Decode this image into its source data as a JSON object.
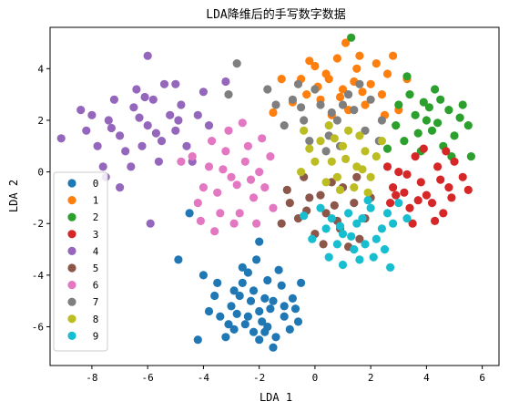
{
  "chart_data": {
    "type": "scatter",
    "title": "LDA降维后的手写数字数据",
    "xlabel": "LDA 1",
    "ylabel": "LDA 2",
    "xlim": [
      -9.5,
      6.6
    ],
    "ylim": [
      -7.5,
      5.6
    ],
    "xticks": [
      -8,
      -6,
      -4,
      -2,
      0,
      2,
      4,
      6
    ],
    "yticks": [
      -6,
      -4,
      -2,
      0,
      2,
      4
    ],
    "grid": false,
    "legend_position": "lower-left",
    "series": [
      {
        "name": "0",
        "color": "#1f77b4",
        "points": [
          [
            -2.0,
            -5.4
          ],
          [
            -2.5,
            -5.9
          ],
          [
            -1.5,
            -5.0
          ],
          [
            -2.2,
            -4.6
          ],
          [
            -1.8,
            -6.2
          ],
          [
            -3.0,
            -5.2
          ],
          [
            -1.1,
            -5.6
          ],
          [
            -2.7,
            -4.8
          ],
          [
            -1.4,
            -6.4
          ],
          [
            -2.3,
            -5.0
          ],
          [
            -1.7,
            -4.2
          ],
          [
            -3.4,
            -5.6
          ],
          [
            -0.8,
            -4.9
          ],
          [
            -2.0,
            -6.5
          ],
          [
            -2.9,
            -6.1
          ],
          [
            -1.2,
            -4.4
          ],
          [
            -3.6,
            -4.8
          ],
          [
            -0.6,
            -5.8
          ],
          [
            -2.4,
            -3.9
          ],
          [
            -1.6,
            -5.3
          ],
          [
            -2.8,
            -5.5
          ],
          [
            -1.9,
            -5.8
          ],
          [
            -3.2,
            -6.4
          ],
          [
            -1.3,
            -3.8
          ],
          [
            -2.6,
            -4.3
          ],
          [
            -0.9,
            -6.1
          ],
          [
            -3.8,
            -5.4
          ],
          [
            -2.1,
            -3.4
          ],
          [
            -1.5,
            -6.8
          ],
          [
            -4.0,
            -4.0
          ],
          [
            -2.0,
            -2.7
          ],
          [
            -4.2,
            -6.5
          ],
          [
            -0.5,
            -4.3
          ],
          [
            -4.9,
            -3.4
          ],
          [
            -4.5,
            -1.6
          ],
          [
            -1.8,
            -4.9
          ],
          [
            -2.4,
            -5.6
          ],
          [
            -1.1,
            -5.2
          ],
          [
            -2.9,
            -4.6
          ],
          [
            -3.5,
            -4.3
          ],
          [
            -1.7,
            -6.0
          ],
          [
            -2.2,
            -6.2
          ],
          [
            -0.7,
            -5.3
          ],
          [
            -3.1,
            -5.9
          ],
          [
            -2.6,
            -3.7
          ]
        ]
      },
      {
        "name": "1",
        "color": "#ff7f0e",
        "points": [
          [
            0.5,
            3.6
          ],
          [
            1.0,
            3.2
          ],
          [
            1.5,
            4.0
          ],
          [
            0.2,
            2.8
          ],
          [
            2.0,
            3.4
          ],
          [
            0.8,
            4.4
          ],
          [
            1.8,
            2.6
          ],
          [
            -0.3,
            3.0
          ],
          [
            1.2,
            2.4
          ],
          [
            2.4,
            3.0
          ],
          [
            0.0,
            4.1
          ],
          [
            1.6,
            4.5
          ],
          [
            2.6,
            3.8
          ],
          [
            -0.8,
            2.7
          ],
          [
            0.6,
            2.2
          ],
          [
            1.4,
            3.5
          ],
          [
            3.0,
            2.4
          ],
          [
            -0.5,
            3.6
          ],
          [
            2.2,
            4.2
          ],
          [
            0.4,
            3.8
          ],
          [
            1.1,
            5.0
          ],
          [
            -1.2,
            3.6
          ],
          [
            2.8,
            4.5
          ],
          [
            -1.5,
            2.3
          ],
          [
            3.3,
            3.6
          ],
          [
            0.9,
            2.9
          ],
          [
            1.7,
            3.1
          ],
          [
            0.1,
            3.3
          ],
          [
            2.5,
            2.2
          ],
          [
            -0.2,
            4.3
          ]
        ]
      },
      {
        "name": "2",
        "color": "#2ca02c",
        "points": [
          [
            3.6,
            2.2
          ],
          [
            4.2,
            1.6
          ],
          [
            4.8,
            2.4
          ],
          [
            3.2,
            1.2
          ],
          [
            4.5,
            2.8
          ],
          [
            5.0,
            1.4
          ],
          [
            3.8,
            0.8
          ],
          [
            4.0,
            2.0
          ],
          [
            5.3,
            2.6
          ],
          [
            3.4,
            3.0
          ],
          [
            4.6,
            1.0
          ],
          [
            4.3,
            3.2
          ],
          [
            2.9,
            1.8
          ],
          [
            5.5,
            1.8
          ],
          [
            3.7,
            1.5
          ],
          [
            4.9,
            0.6
          ],
          [
            3.0,
            2.6
          ],
          [
            4.1,
            2.5
          ],
          [
            5.6,
            0.6
          ],
          [
            2.6,
            0.9
          ],
          [
            4.4,
            1.9
          ],
          [
            3.3,
            3.7
          ],
          [
            5.2,
            2.1
          ],
          [
            1.3,
            5.2
          ],
          [
            3.9,
            2.7
          ]
        ]
      },
      {
        "name": "3",
        "color": "#d62728",
        "points": [
          [
            3.8,
            -0.4
          ],
          [
            4.4,
            0.2
          ],
          [
            3.2,
            -0.8
          ],
          [
            4.8,
            -0.6
          ],
          [
            3.6,
            0.6
          ],
          [
            4.2,
            -1.2
          ],
          [
            3.0,
            0.0
          ],
          [
            5.0,
            0.4
          ],
          [
            4.6,
            -1.6
          ],
          [
            3.4,
            -1.4
          ],
          [
            2.8,
            -0.6
          ],
          [
            5.3,
            -0.2
          ],
          [
            4.0,
            -0.9
          ],
          [
            3.5,
            -2.0
          ],
          [
            4.9,
            -1.0
          ],
          [
            2.6,
            0.2
          ],
          [
            3.9,
            0.9
          ],
          [
            4.5,
            -0.3
          ],
          [
            3.3,
            -0.1
          ],
          [
            5.5,
            -0.7
          ],
          [
            2.7,
            -1.2
          ],
          [
            4.7,
            0.8
          ],
          [
            3.7,
            -1.1
          ],
          [
            4.3,
            -1.9
          ],
          [
            2.9,
            -0.9
          ]
        ]
      },
      {
        "name": "4",
        "color": "#9467bd",
        "points": [
          [
            -6.0,
            1.8
          ],
          [
            -6.5,
            2.5
          ],
          [
            -5.5,
            1.2
          ],
          [
            -7.0,
            1.4
          ],
          [
            -5.8,
            2.8
          ],
          [
            -6.8,
            0.8
          ],
          [
            -5.2,
            2.2
          ],
          [
            -7.4,
            2.0
          ],
          [
            -6.2,
            1.0
          ],
          [
            -5.0,
            1.6
          ],
          [
            -7.2,
            2.8
          ],
          [
            -6.4,
            3.2
          ],
          [
            -5.6,
            0.4
          ],
          [
            -7.8,
            1.0
          ],
          [
            -4.8,
            2.6
          ],
          [
            -6.6,
            0.2
          ],
          [
            -5.4,
            3.4
          ],
          [
            -8.0,
            2.2
          ],
          [
            -4.6,
            1.0
          ],
          [
            -7.6,
            0.2
          ],
          [
            -5.0,
            3.4
          ],
          [
            -6.0,
            4.5
          ],
          [
            -4.2,
            2.2
          ],
          [
            -8.2,
            1.6
          ],
          [
            -7.0,
            -0.6
          ],
          [
            -4.4,
            0.4
          ],
          [
            -3.8,
            1.8
          ],
          [
            -5.9,
            -2.0
          ],
          [
            -9.1,
            1.3
          ],
          [
            -3.2,
            3.5
          ],
          [
            -6.3,
            2.1
          ],
          [
            -5.7,
            1.5
          ],
          [
            -7.3,
            1.7
          ],
          [
            -4.9,
            2.0
          ],
          [
            -6.1,
            2.9
          ],
          [
            -8.4,
            2.4
          ],
          [
            -4.0,
            3.1
          ],
          [
            -7.5,
            -0.2
          ]
        ]
      },
      {
        "name": "5",
        "color": "#8c564b",
        "points": [
          [
            0.4,
            -1.6
          ],
          [
            0.9,
            -2.2
          ],
          [
            -0.2,
            -1.0
          ],
          [
            1.4,
            -1.2
          ],
          [
            0.0,
            -2.4
          ],
          [
            1.0,
            -0.6
          ],
          [
            -0.6,
            -1.8
          ],
          [
            1.6,
            -2.6
          ],
          [
            0.6,
            -0.4
          ],
          [
            -0.9,
            -1.2
          ],
          [
            1.8,
            -1.8
          ],
          [
            0.2,
            -0.9
          ],
          [
            -1.2,
            -2.0
          ],
          [
            1.2,
            -2.9
          ],
          [
            0.7,
            -1.3
          ],
          [
            -0.4,
            -0.2
          ],
          [
            2.0,
            -1.0
          ],
          [
            -1.0,
            -0.7
          ],
          [
            0.3,
            -2.8
          ],
          [
            1.5,
            -0.2
          ],
          [
            -0.3,
            -1.5
          ],
          [
            0.8,
            -1.9
          ]
        ]
      },
      {
        "name": "6",
        "color": "#e377c2",
        "points": [
          [
            -3.0,
            -0.2
          ],
          [
            -2.5,
            0.4
          ],
          [
            -3.5,
            -0.8
          ],
          [
            -2.2,
            -1.0
          ],
          [
            -3.2,
            0.8
          ],
          [
            -2.7,
            -1.6
          ],
          [
            -3.8,
            0.2
          ],
          [
            -2.0,
            0.0
          ],
          [
            -3.4,
            -1.6
          ],
          [
            -2.4,
            1.0
          ],
          [
            -4.0,
            -0.6
          ],
          [
            -1.8,
            -0.6
          ],
          [
            -2.9,
            -2.0
          ],
          [
            -3.7,
            1.2
          ],
          [
            -1.6,
            0.6
          ],
          [
            -4.2,
            -1.2
          ],
          [
            -2.1,
            -2.0
          ],
          [
            -3.1,
            1.6
          ],
          [
            -1.5,
            -1.4
          ],
          [
            -4.4,
            0.6
          ],
          [
            -2.6,
            1.9
          ],
          [
            -3.6,
            -2.3
          ],
          [
            -4.8,
            0.4
          ],
          [
            -2.8,
            -0.5
          ],
          [
            -3.3,
            0.1
          ],
          [
            -2.3,
            -0.3
          ],
          [
            -1.9,
            1.3
          ],
          [
            -4.1,
            -1.9
          ]
        ]
      },
      {
        "name": "7",
        "color": "#7f7f7f",
        "points": [
          [
            0.2,
            2.6
          ],
          [
            0.8,
            2.0
          ],
          [
            -0.4,
            2.0
          ],
          [
            1.4,
            2.4
          ],
          [
            0.5,
            1.4
          ],
          [
            -0.8,
            2.8
          ],
          [
            1.8,
            1.6
          ],
          [
            0.0,
            3.2
          ],
          [
            1.2,
            3.0
          ],
          [
            -0.2,
            1.2
          ],
          [
            2.0,
            2.8
          ],
          [
            0.9,
            1.0
          ],
          [
            -1.1,
            1.8
          ],
          [
            1.6,
            3.4
          ],
          [
            -0.6,
            3.4
          ],
          [
            2.4,
            2.0
          ],
          [
            0.4,
            0.8
          ],
          [
            -1.4,
            2.6
          ],
          [
            1.0,
            2.6
          ],
          [
            -0.5,
            2.5
          ],
          [
            2.3,
            1.2
          ],
          [
            -1.7,
            3.2
          ],
          [
            -2.8,
            4.2
          ],
          [
            -3.1,
            3.0
          ],
          [
            0.6,
            2.3
          ]
        ]
      },
      {
        "name": "8",
        "color": "#bcbd22",
        "points": [
          [
            1.0,
            1.0
          ],
          [
            0.6,
            0.4
          ],
          [
            1.5,
            0.2
          ],
          [
            0.2,
            1.2
          ],
          [
            1.8,
            0.8
          ],
          [
            0.8,
            -0.2
          ],
          [
            1.2,
            1.6
          ],
          [
            0.0,
            0.4
          ],
          [
            2.0,
            -0.2
          ],
          [
            0.4,
            -0.4
          ],
          [
            1.6,
            1.4
          ],
          [
            -0.2,
            0.9
          ],
          [
            2.2,
            0.6
          ],
          [
            0.9,
            -0.7
          ],
          [
            1.4,
            -0.6
          ],
          [
            -0.4,
            1.6
          ],
          [
            2.4,
            1.2
          ],
          [
            0.5,
            1.8
          ],
          [
            1.9,
            -0.8
          ],
          [
            -0.5,
            0.0
          ],
          [
            1.1,
            0.5
          ],
          [
            0.7,
            1.3
          ],
          [
            1.7,
            0.1
          ]
        ]
      },
      {
        "name": "9",
        "color": "#17becf",
        "points": [
          [
            1.5,
            -2.0
          ],
          [
            2.0,
            -1.4
          ],
          [
            1.0,
            -2.4
          ],
          [
            2.4,
            -2.2
          ],
          [
            1.2,
            -1.6
          ],
          [
            1.8,
            -2.8
          ],
          [
            0.6,
            -1.8
          ],
          [
            2.6,
            -1.6
          ],
          [
            1.4,
            -3.0
          ],
          [
            0.8,
            -2.8
          ],
          [
            2.2,
            -2.6
          ],
          [
            0.4,
            -2.2
          ],
          [
            2.8,
            -2.0
          ],
          [
            1.6,
            -3.4
          ],
          [
            0.2,
            -1.4
          ],
          [
            3.0,
            -1.2
          ],
          [
            1.0,
            -3.6
          ],
          [
            2.5,
            -3.0
          ],
          [
            -0.1,
            -2.6
          ],
          [
            3.3,
            -1.8
          ],
          [
            0.5,
            -3.3
          ],
          [
            1.9,
            -1.1
          ],
          [
            -0.4,
            -1.7
          ],
          [
            2.7,
            -3.7
          ],
          [
            1.3,
            -2.5
          ],
          [
            1.7,
            -1.8
          ],
          [
            0.9,
            -2.1
          ],
          [
            2.1,
            -3.3
          ]
        ]
      }
    ]
  }
}
